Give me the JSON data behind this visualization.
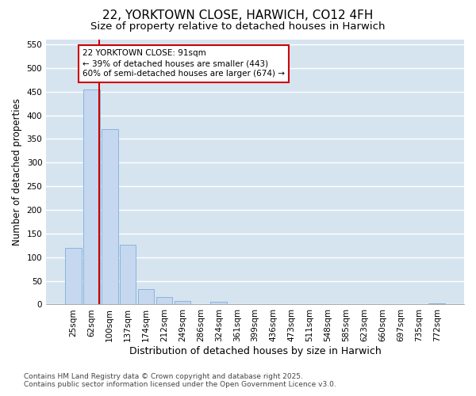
{
  "title": "22, YORKTOWN CLOSE, HARWICH, CO12 4FH",
  "subtitle": "Size of property relative to detached houses in Harwich",
  "xlabel": "Distribution of detached houses by size in Harwich",
  "ylabel": "Number of detached properties",
  "footnote": "Contains HM Land Registry data © Crown copyright and database right 2025.\nContains public sector information licensed under the Open Government Licence v3.0.",
  "categories": [
    "25sqm",
    "62sqm",
    "100sqm",
    "137sqm",
    "174sqm",
    "212sqm",
    "249sqm",
    "286sqm",
    "324sqm",
    "361sqm",
    "399sqm",
    "436sqm",
    "473sqm",
    "511sqm",
    "548sqm",
    "585sqm",
    "623sqm",
    "660sqm",
    "697sqm",
    "735sqm",
    "772sqm"
  ],
  "values": [
    120,
    455,
    370,
    127,
    33,
    15,
    8,
    0,
    5,
    0,
    0,
    0,
    0,
    0,
    0,
    0,
    0,
    0,
    0,
    0,
    2
  ],
  "bar_color": "#c5d8ef",
  "bar_edge_color": "#89b4d9",
  "bg_color": "#d6e4f0",
  "grid_color": "#ffffff",
  "fig_bg_color": "#ffffff",
  "vline_x": 1.42,
  "vline_color": "#cc0000",
  "annotation_text": "22 YORKTOWN CLOSE: 91sqm\n← 39% of detached houses are smaller (443)\n60% of semi-detached houses are larger (674) →",
  "annotation_box_color": "#cc0000",
  "ylim": [
    0,
    560
  ],
  "yticks": [
    0,
    50,
    100,
    150,
    200,
    250,
    300,
    350,
    400,
    450,
    500,
    550
  ],
  "title_fontsize": 11,
  "subtitle_fontsize": 9.5,
  "xlabel_fontsize": 9,
  "ylabel_fontsize": 8.5,
  "tick_fontsize": 7.5,
  "annotation_fontsize": 7.5,
  "footnote_fontsize": 6.5
}
